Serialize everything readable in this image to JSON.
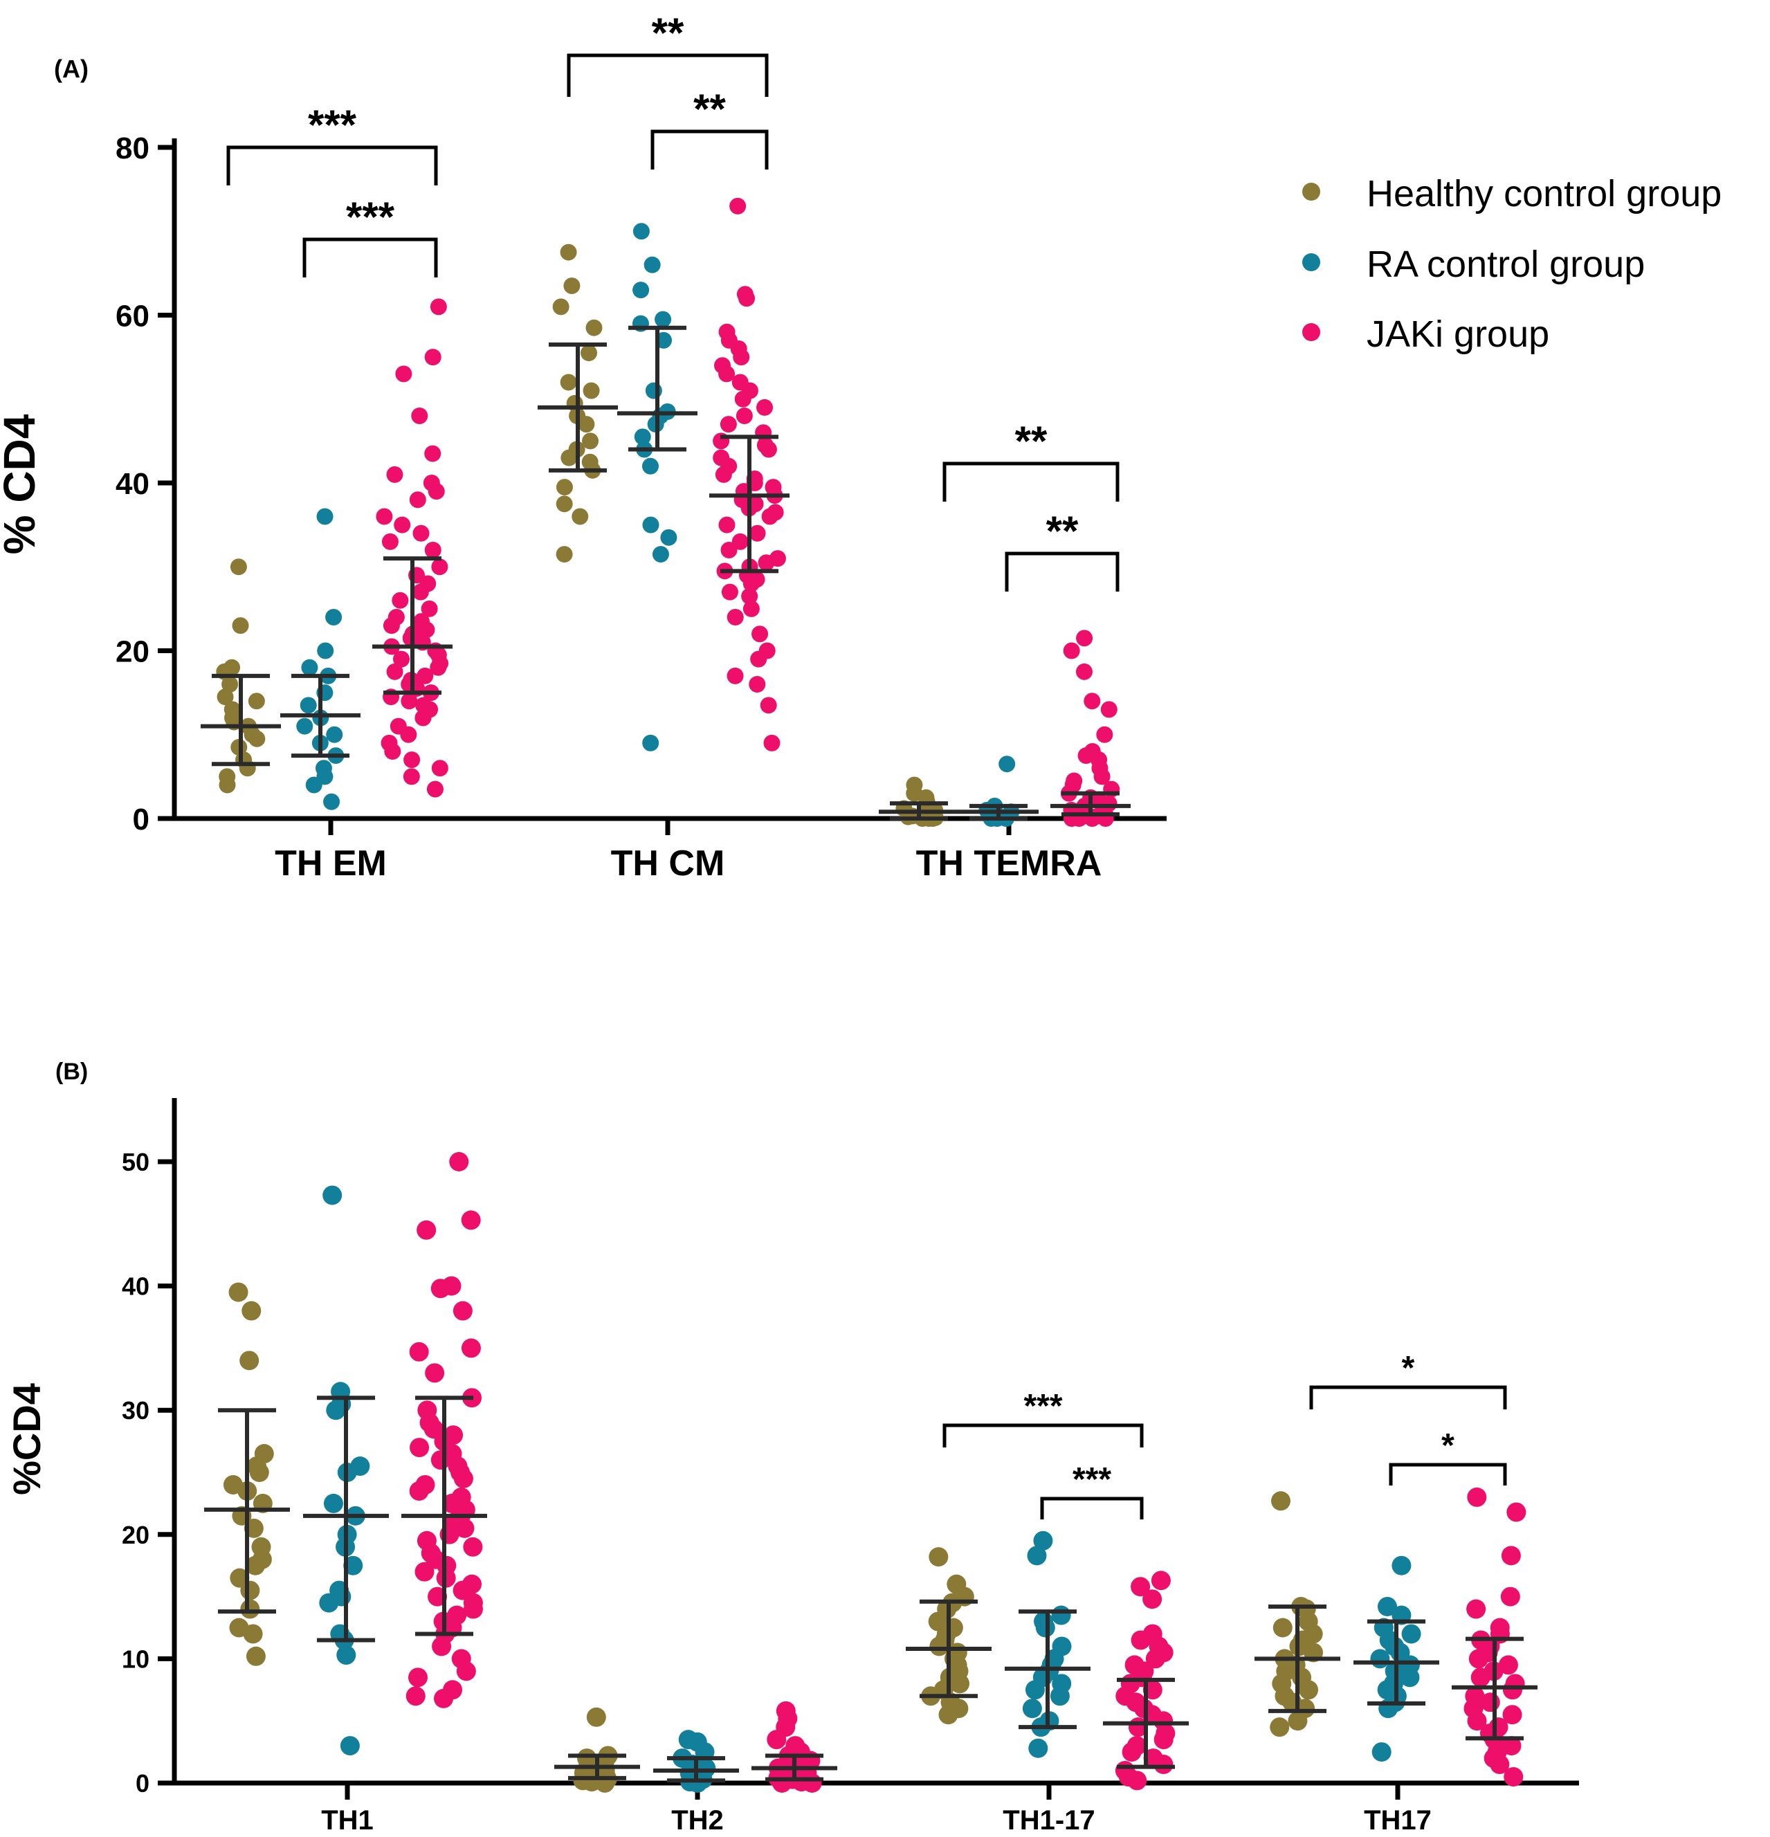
{
  "chart_data": [
    {
      "panel": "(A)",
      "type": "scatter",
      "ylabel": "% CD4",
      "ylim": [
        0,
        80
      ],
      "yticks": [
        0,
        20,
        40,
        60,
        80
      ],
      "categories": [
        "TH EM",
        "TH CM",
        "TH TEMRA"
      ],
      "legend": {
        "placement": "top-right",
        "entries": [
          {
            "name": "Healthy control group",
            "color": "#8B7A36"
          },
          {
            "name": "RA control group",
            "color": "#12809A"
          },
          {
            "name": "JAKi group",
            "color": "#EE0F6A"
          }
        ]
      },
      "series": [
        {
          "name": "Healthy control group",
          "color": "#8B7A36",
          "groups": [
            {
              "category": "TH EM",
              "mean": 11,
              "sd_low": 6.5,
              "sd_high": 17,
              "points": [
                30,
                23,
                18,
                17.5,
                16,
                14.5,
                14,
                13,
                12,
                11.5,
                11,
                10,
                9.5,
                8.5,
                7,
                6,
                5,
                4
              ]
            },
            {
              "category": "TH CM",
              "mean": 49,
              "sd_low": 41.5,
              "sd_high": 56.5,
              "points": [
                67.5,
                63.5,
                61,
                58.5,
                55.5,
                52,
                51,
                49.5,
                48,
                47,
                45,
                44,
                43,
                42.5,
                41.5,
                39.5,
                37.5,
                36,
                31.5
              ]
            },
            {
              "category": "TH TEMRA",
              "mean": 0.8,
              "sd_low": 0,
              "sd_high": 1.8,
              "points": [
                4,
                3,
                2.5,
                2,
                1.5,
                1.2,
                1,
                0.8,
                0.6,
                0.4,
                0.3,
                0.2,
                0.1,
                0.1,
                0,
                0,
                0
              ]
            }
          ]
        },
        {
          "name": "RA control group",
          "color": "#12809A",
          "groups": [
            {
              "category": "TH EM",
              "mean": 12.3,
              "sd_low": 7.5,
              "sd_high": 17,
              "points": [
                36,
                24,
                20,
                18,
                17,
                15,
                13.5,
                12,
                11,
                10,
                9,
                7.5,
                6,
                5,
                4,
                2
              ]
            },
            {
              "category": "TH CM",
              "mean": 48.3,
              "sd_low": 44,
              "sd_high": 58.5,
              "points": [
                70,
                66,
                63,
                59.5,
                59,
                57,
                51,
                48.5,
                48,
                47,
                45.5,
                44,
                42,
                35,
                33.5,
                31.5,
                9
              ]
            },
            {
              "category": "TH TEMRA",
              "mean": 0.8,
              "sd_low": 0,
              "sd_high": 1.5,
              "points": [
                6.5,
                1.5,
                1.2,
                1,
                0.8,
                0.5,
                0.3,
                0.2,
                0,
                0,
                0
              ]
            }
          ]
        },
        {
          "name": "JAKi group",
          "color": "#EE0F6A",
          "groups": [
            {
              "category": "TH EM",
              "mean": 20.5,
              "sd_low": 15,
              "sd_high": 31,
              "points": [
                61,
                55,
                53,
                48,
                43.5,
                41,
                40,
                39,
                38,
                36,
                35,
                34,
                33,
                32,
                30,
                29,
                28,
                27,
                26,
                25,
                24,
                23.5,
                23,
                22.5,
                22,
                21.5,
                21,
                20.5,
                20,
                19.5,
                19,
                18.5,
                18,
                17.5,
                17,
                16.5,
                16,
                15.5,
                15,
                14.5,
                14,
                13.5,
                13,
                12,
                11,
                10,
                9,
                8,
                7,
                6,
                5,
                3.5
              ]
            },
            {
              "category": "TH CM",
              "mean": 38.5,
              "sd_low": 29.5,
              "sd_high": 45.5,
              "points": [
                73,
                62.5,
                62,
                58,
                57,
                56,
                55,
                54,
                53,
                52,
                51,
                50,
                49,
                48,
                47,
                46,
                45,
                44.5,
                44,
                43,
                42,
                41,
                40.5,
                40,
                39.5,
                39,
                38.5,
                38,
                37.5,
                37,
                36.5,
                36,
                35,
                34,
                33,
                32,
                31,
                30.5,
                30,
                29.5,
                29,
                28.5,
                28,
                27,
                26.5,
                25,
                24,
                22,
                20,
                19,
                17,
                16,
                13.5,
                9
              ]
            },
            {
              "category": "TH TEMRA",
              "mean": 1.5,
              "sd_low": 0.5,
              "sd_high": 3,
              "points": [
                21.5,
                20,
                17.5,
                14,
                13,
                10,
                8,
                7.5,
                7,
                6,
                5,
                4.5,
                4,
                3.5,
                3,
                2.5,
                2,
                1.8,
                1.5,
                1.2,
                1,
                0.8,
                0.5,
                0.3,
                0.2,
                0.1,
                0,
                0,
                0,
                0
              ]
            }
          ]
        }
      ],
      "significance": [
        {
          "label": "***",
          "from": "Healthy control group",
          "to": "JAKi group",
          "category": "TH EM"
        },
        {
          "label": "***",
          "from": "RA control group",
          "to": "JAKi group",
          "category": "TH EM"
        },
        {
          "label": "**",
          "from": "Healthy control group",
          "to": "JAKi group",
          "category": "TH CM"
        },
        {
          "label": "**",
          "from": "RA control group",
          "to": "JAKi group",
          "category": "TH CM"
        },
        {
          "label": "**",
          "from": "Healthy control group",
          "to": "JAKi group",
          "category": "TH TEMRA"
        },
        {
          "label": "**",
          "from": "RA control group",
          "to": "JAKi group",
          "category": "TH TEMRA"
        }
      ]
    },
    {
      "panel": "(B)",
      "type": "scatter",
      "ylabel": "%CD4",
      "ylim": [
        0,
        55
      ],
      "yticks": [
        0,
        10,
        20,
        30,
        40,
        50
      ],
      "categories": [
        "TH1",
        "TH2",
        "TH1-17",
        "TH17"
      ],
      "series": [
        {
          "name": "Healthy control group",
          "color": "#8B7A36",
          "groups": [
            {
              "category": "TH1",
              "mean": 22,
              "sd_low": 13.8,
              "sd_high": 30,
              "points": [
                39.5,
                38,
                34,
                26.5,
                25.5,
                25,
                24,
                23.5,
                22.5,
                21.5,
                20.5,
                19,
                18,
                17.5,
                16.5,
                15.5,
                14,
                12.5,
                12,
                10.2
              ]
            },
            {
              "category": "TH2",
              "mean": 1.3,
              "sd_low": 0.4,
              "sd_high": 2.2,
              "points": [
                5.3,
                2.2,
                2,
                1.8,
                1.5,
                1.3,
                1.2,
                1,
                0.8,
                0.6,
                0.5,
                0.4,
                0.3,
                0.2,
                0.1,
                0
              ]
            },
            {
              "category": "TH1-17",
              "mean": 10.8,
              "sd_low": 7,
              "sd_high": 14.6,
              "points": [
                18.2,
                16,
                15,
                14.5,
                14,
                13,
                12.5,
                12,
                11.5,
                11,
                10.5,
                10,
                9.5,
                9,
                8.5,
                8,
                7.5,
                7,
                6.5,
                6,
                5.5
              ]
            },
            {
              "category": "TH17",
              "mean": 10,
              "sd_low": 5.8,
              "sd_high": 14.2,
              "points": [
                22.7,
                14.2,
                14,
                13,
                12.5,
                12,
                11.5,
                11,
                10.5,
                10,
                9.5,
                9,
                8.5,
                8,
                7.5,
                7,
                6.5,
                6,
                5,
                4.5
              ]
            }
          ]
        },
        {
          "name": "RA control group",
          "color": "#12809A",
          "groups": [
            {
              "category": "TH1",
              "mean": 21.5,
              "sd_low": 11.5,
              "sd_high": 31,
              "points": [
                47.3,
                31.5,
                30.5,
                30,
                25.5,
                25,
                22.5,
                21.5,
                20,
                19,
                17.5,
                15.5,
                15,
                14.5,
                12,
                11.5,
                10.3,
                3
              ]
            },
            {
              "category": "TH2",
              "mean": 1,
              "sd_low": 0.2,
              "sd_high": 2,
              "points": [
                3.5,
                3.3,
                2.5,
                2,
                1.5,
                1.2,
                1,
                0.8,
                0.5,
                0.3,
                0.2,
                0.1,
                0
              ]
            },
            {
              "category": "TH1-17",
              "mean": 9.2,
              "sd_low": 4.5,
              "sd_high": 13.8,
              "points": [
                19.5,
                18.3,
                13.5,
                13,
                12.5,
                11,
                10,
                9.5,
                9,
                8.5,
                8,
                7.5,
                7,
                6,
                5,
                4.5,
                2.8
              ]
            },
            {
              "category": "TH17",
              "mean": 9.7,
              "sd_low": 6.4,
              "sd_high": 13,
              "points": [
                17.5,
                14.2,
                13.5,
                12.5,
                12,
                11.5,
                11,
                10.5,
                10,
                9.5,
                9,
                8.5,
                8,
                7.5,
                7,
                6.5,
                6,
                2.5
              ]
            }
          ]
        },
        {
          "name": "JAKi group",
          "color": "#EE0F6A",
          "groups": [
            {
              "category": "TH1",
              "mean": 21.5,
              "sd_low": 12,
              "sd_high": 31,
              "points": [
                50,
                45.3,
                44.5,
                40,
                39.8,
                38,
                35,
                34.7,
                33,
                31,
                30,
                29,
                28.5,
                28,
                27.5,
                27,
                26.5,
                26,
                25.5,
                25,
                24.5,
                24,
                23.5,
                23,
                22.5,
                22,
                21.5,
                21,
                20.5,
                20,
                19.5,
                19,
                18.5,
                18,
                17.5,
                17,
                16.5,
                16,
                15.5,
                15,
                14.5,
                14,
                13.5,
                13,
                12.5,
                12,
                11,
                10,
                9,
                8.5,
                7.5,
                7,
                6.8
              ]
            },
            {
              "category": "TH2",
              "mean": 1.2,
              "sd_low": 0.3,
              "sd_high": 2.2,
              "points": [
                5.8,
                5.2,
                4.5,
                3.5,
                3,
                2.5,
                2.2,
                2,
                1.8,
                1.5,
                1.3,
                1.2,
                1,
                0.8,
                0.6,
                0.5,
                0.4,
                0.3,
                0.2,
                0.1,
                0,
                0
              ]
            },
            {
              "category": "TH1-17",
              "mean": 4.8,
              "sd_low": 1.3,
              "sd_high": 8.3,
              "points": [
                16.3,
                15.8,
                14.8,
                12,
                11.5,
                11,
                10.5,
                10,
                9.5,
                9,
                8.5,
                8,
                7.5,
                7,
                6.5,
                6,
                5.5,
                5,
                4.5,
                4,
                3.5,
                3,
                2.5,
                2,
                1.5,
                1,
                0.5,
                0.2
              ]
            },
            {
              "category": "TH17",
              "mean": 7.7,
              "sd_low": 3.6,
              "sd_high": 11.6,
              "points": [
                23,
                21.8,
                18.3,
                15,
                14,
                12.5,
                12,
                11.5,
                11,
                10.5,
                10,
                9.5,
                9,
                8.5,
                8,
                7.5,
                7,
                6.5,
                6,
                5.5,
                5,
                4.5,
                4,
                3.5,
                3,
                2.5,
                2,
                1.5,
                0.5
              ]
            }
          ]
        }
      ],
      "significance": [
        {
          "label": "***",
          "from": "Healthy control group",
          "to": "JAKi group",
          "category": "TH1-17"
        },
        {
          "label": "***",
          "from": "RA control group",
          "to": "JAKi group",
          "category": "TH1-17"
        },
        {
          "label": "*",
          "from": "Healthy control group",
          "to": "JAKi group",
          "category": "TH17"
        },
        {
          "label": "*",
          "from": "RA control group",
          "to": "JAKi group",
          "category": "TH17"
        }
      ]
    }
  ]
}
